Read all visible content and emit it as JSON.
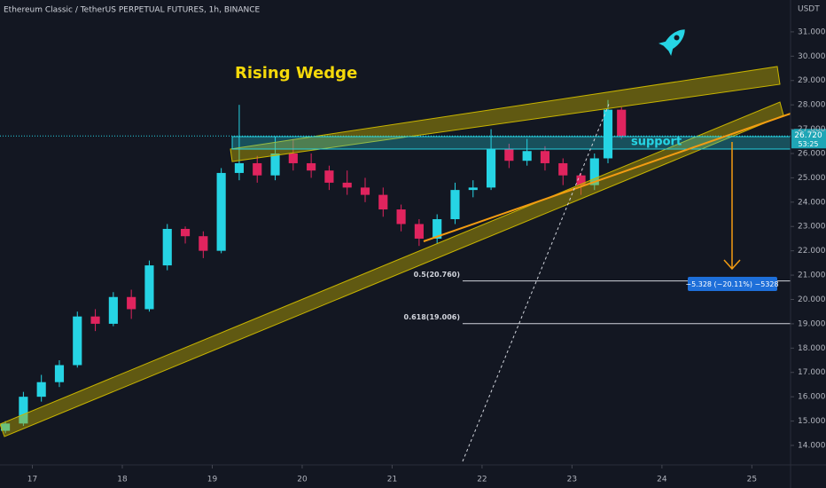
{
  "header": {
    "title": "Ethereum Classic / TetherUS PERPETUAL FUTURES, 1h, BINANCE",
    "currency": "USDT"
  },
  "chart_data": {
    "type": "candlestick",
    "x": [
      16.7,
      16.9,
      17.1,
      17.3,
      17.5,
      17.7,
      17.9,
      18.1,
      18.3,
      18.5,
      18.7,
      18.9,
      19.1,
      19.3,
      19.5,
      19.7,
      19.9,
      20.1,
      20.3,
      20.5,
      20.7,
      20.9,
      21.1,
      21.3,
      21.5,
      21.7,
      21.9,
      22.1,
      22.3,
      22.5,
      22.7,
      22.9,
      23.1,
      23.25,
      23.4,
      23.55
    ],
    "open": [
      14.6,
      14.9,
      16.0,
      16.6,
      17.3,
      19.3,
      19.0,
      20.1,
      19.6,
      21.4,
      22.9,
      22.6,
      22.0,
      25.2,
      25.6,
      25.1,
      26.0,
      25.6,
      25.3,
      24.8,
      24.6,
      24.3,
      23.7,
      23.1,
      22.5,
      23.3,
      24.5,
      24.6,
      26.2,
      25.7,
      26.1,
      25.6,
      25.1,
      24.7,
      25.8,
      27.8
    ],
    "high": [
      15.0,
      16.2,
      16.9,
      17.5,
      19.5,
      19.6,
      20.3,
      20.4,
      21.6,
      23.1,
      23.0,
      22.8,
      25.4,
      28.0,
      25.9,
      26.7,
      26.6,
      26.0,
      25.5,
      25.3,
      25.0,
      24.6,
      23.9,
      23.3,
      23.5,
      24.8,
      24.9,
      27.0,
      26.4,
      26.6,
      26.3,
      25.8,
      25.2,
      26.0,
      28.2,
      27.9
    ],
    "low": [
      14.5,
      14.8,
      15.8,
      16.4,
      17.2,
      18.7,
      18.9,
      19.2,
      19.5,
      21.2,
      22.3,
      21.7,
      21.9,
      24.9,
      24.8,
      24.9,
      25.3,
      25.0,
      24.5,
      24.3,
      24.0,
      23.4,
      22.8,
      22.2,
      22.3,
      23.1,
      24.2,
      24.5,
      25.4,
      25.5,
      25.3,
      24.7,
      24.3,
      24.5,
      25.6,
      26.6
    ],
    "close": [
      14.9,
      16.0,
      16.6,
      17.3,
      19.3,
      19.0,
      20.1,
      19.6,
      21.4,
      22.9,
      22.6,
      22.0,
      25.2,
      25.6,
      25.1,
      26.0,
      25.6,
      25.3,
      24.8,
      24.6,
      24.3,
      23.7,
      23.1,
      22.5,
      23.3,
      24.5,
      24.6,
      26.2,
      25.7,
      26.1,
      25.6,
      25.1,
      24.7,
      25.8,
      27.8,
      26.72
    ],
    "up_color": "#26d4e4",
    "down_color": "#e0245e",
    "xlim": [
      16.64,
      25.43
    ],
    "xticks": [
      17,
      18,
      19,
      20,
      21,
      22,
      23,
      24,
      25
    ],
    "ylim": [
      13.27,
      32.31
    ],
    "yticks": [
      {
        "value": 14,
        "label": "14.000"
      },
      {
        "value": 15,
        "label": "15.000"
      },
      {
        "value": 16,
        "label": "16.000"
      },
      {
        "value": 17,
        "label": "17.000"
      },
      {
        "value": 18,
        "label": "18.000"
      },
      {
        "value": 19,
        "label": "19.000"
      },
      {
        "value": 20,
        "label": "20.000"
      },
      {
        "value": 21,
        "label": "21.000"
      },
      {
        "value": 22,
        "label": "22.000"
      },
      {
        "value": 23,
        "label": "23.000"
      },
      {
        "value": 24,
        "label": "24.000"
      },
      {
        "value": 25,
        "label": "25.000"
      },
      {
        "value": 26,
        "label": "26.000"
      },
      {
        "value": 27,
        "label": "27.000"
      },
      {
        "value": 28,
        "label": "28.000"
      },
      {
        "value": 29,
        "label": "29.000"
      },
      {
        "value": 30,
        "label": "30.000"
      },
      {
        "value": 31,
        "label": "31.000"
      }
    ],
    "last_price": {
      "value": 26.72,
      "label": "26.720"
    },
    "countdown": "53:25",
    "annotations": {
      "pattern": "Rising Wedge",
      "zone": "support",
      "fib_levels": [
        {
          "value": 20.76,
          "label": "0.5(20.760)"
        },
        {
          "value": 19.006,
          "label": "0.618(19.006)"
        }
      ],
      "measure": "−5.328 (−20.11%) −5328"
    }
  }
}
